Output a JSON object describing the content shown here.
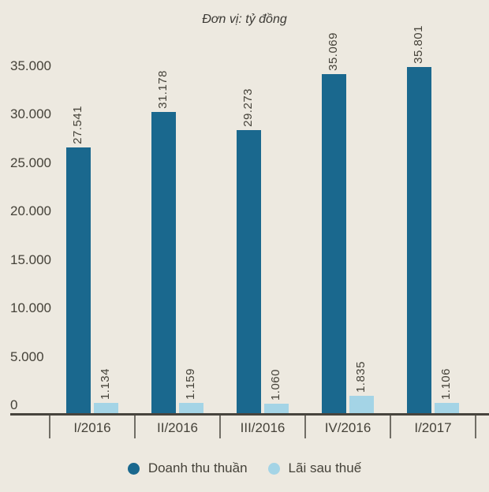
{
  "title": "Đơn vị: tỷ đồng",
  "colors": {
    "background": "#EDE9E0",
    "revenue_bar": "#1A688E",
    "profit_bar": "#A4D4E6",
    "text": "#454239",
    "axis_line": "#47443D",
    "tick_line": "#716E66"
  },
  "chart_data": {
    "type": "bar",
    "title": "Đơn vị: tỷ đồng",
    "categories": [
      "I/2016",
      "II/2016",
      "III/2016",
      "IV/2016",
      "I/2017"
    ],
    "series": [
      {
        "name": "Doanh thu thuần",
        "color": "#1A688E",
        "values": [
          27541,
          31178,
          29273,
          35069,
          35801
        ],
        "labels": [
          "27.541",
          "31.178",
          "29.273",
          "35.069",
          "35.801"
        ]
      },
      {
        "name": "Lãi sau thuế",
        "color": "#A4D4E6",
        "values": [
          1134,
          1159,
          1060,
          1835,
          1106
        ],
        "labels": [
          "1.134",
          "1.159",
          "1.060",
          "1.835",
          "1.106"
        ]
      }
    ],
    "xlabel": "",
    "ylabel": "",
    "ylim": [
      0,
      35000
    ],
    "yticks": [
      0,
      5000,
      10000,
      15000,
      20000,
      25000,
      30000,
      35000
    ],
    "ytick_labels": [
      "0",
      "5.000",
      "10.000",
      "15.000",
      "20.000",
      "25.000",
      "30.000",
      "35.000"
    ],
    "grid": false,
    "legend_position": "bottom"
  },
  "legend": {
    "revenue_label": "Doanh thu thuần",
    "profit_label": "Lãi sau thuế"
  }
}
